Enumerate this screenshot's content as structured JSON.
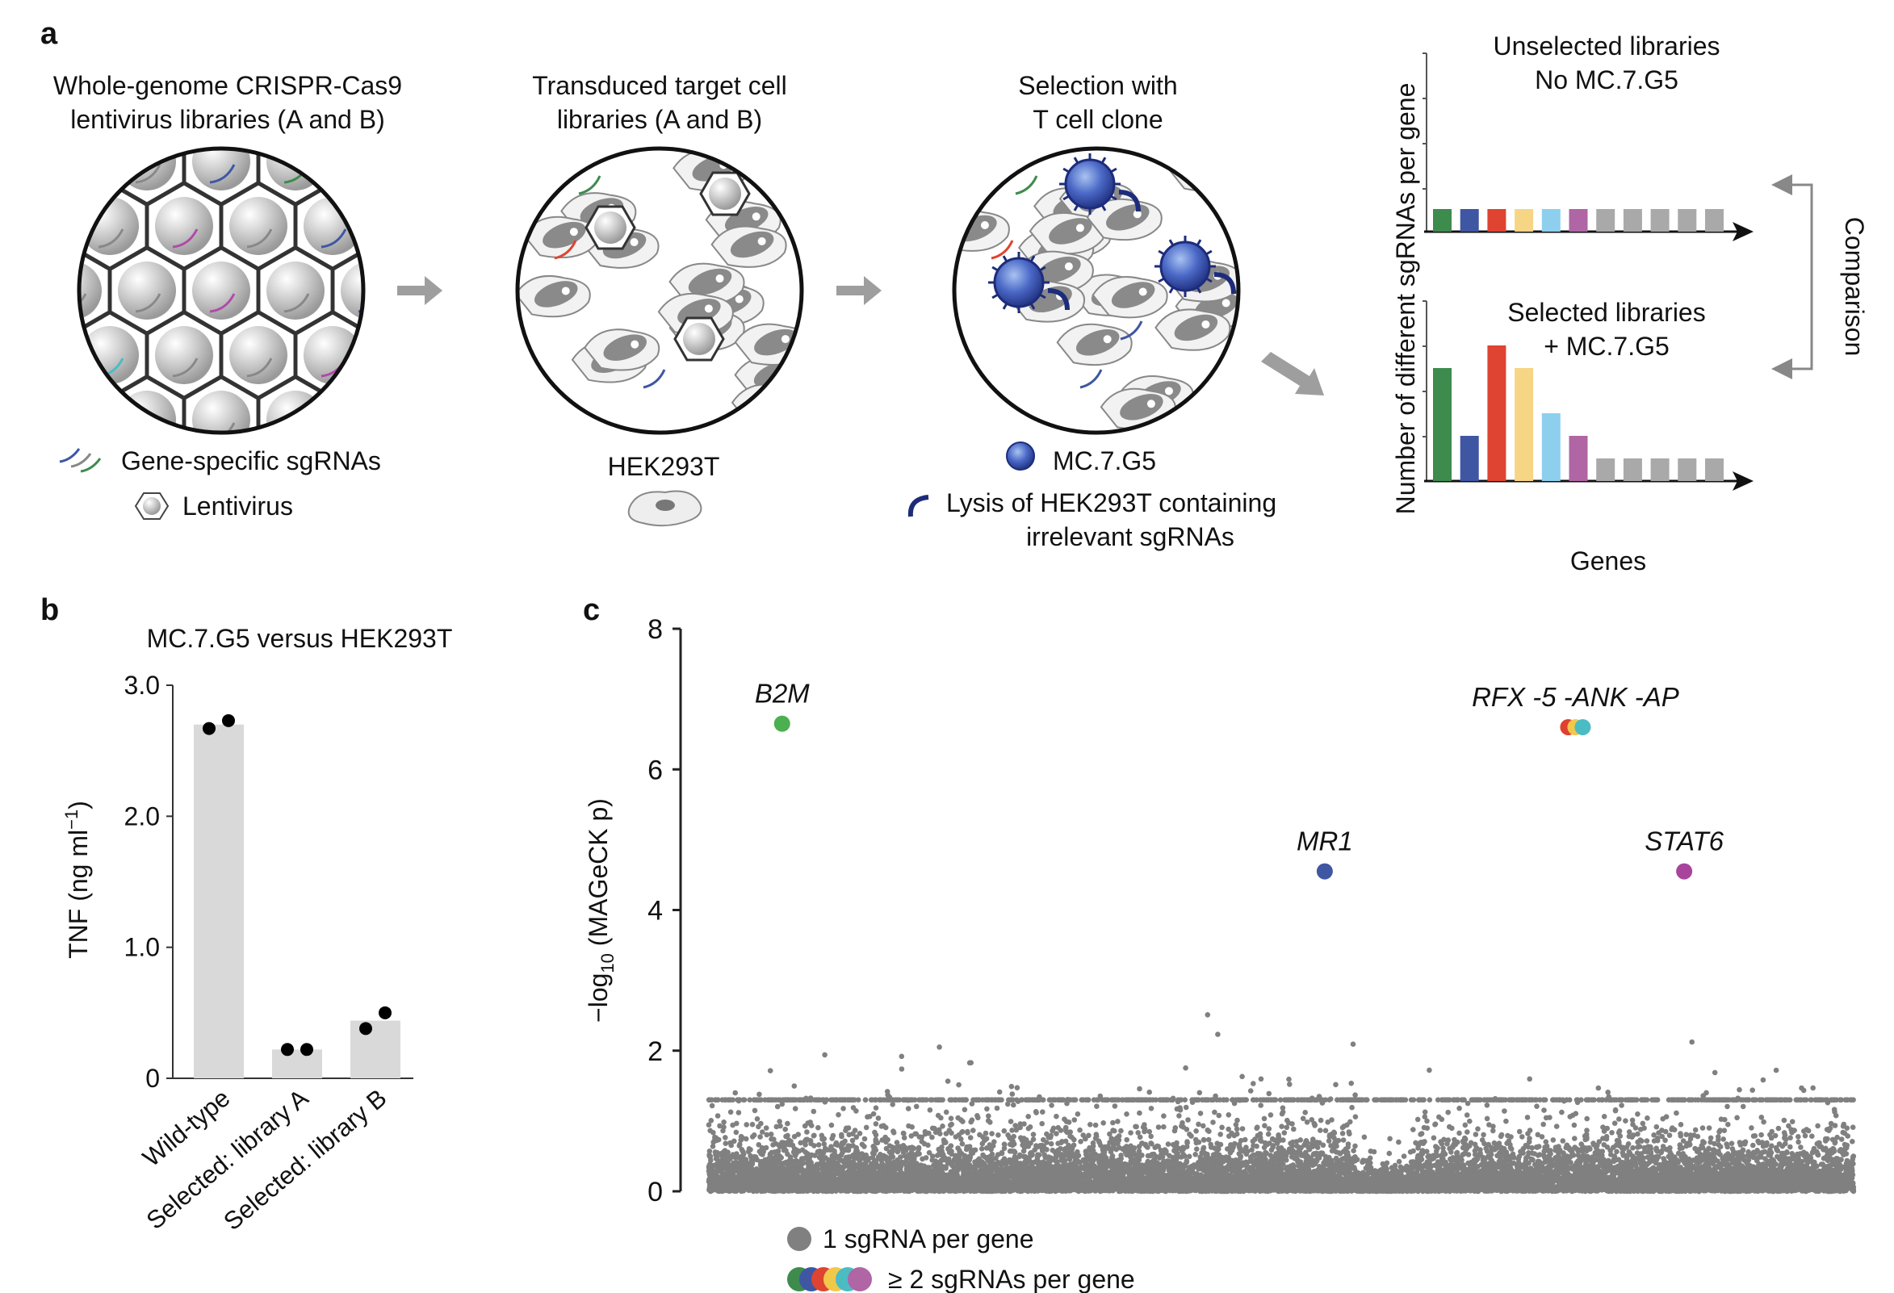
{
  "panel_labels": {
    "a": "a",
    "b": "b",
    "c": "c"
  },
  "panel_a": {
    "step1_title": [
      "Whole-genome CRISPR-Cas9",
      "lentivirus libraries (A and B)"
    ],
    "step2_title": [
      "Transduced target cell",
      "libraries (A and B)"
    ],
    "step3_title": [
      "Selection with",
      "T cell clone"
    ],
    "legend_sgrna": "Gene-specific sgRNAs",
    "legend_lentivirus": "Lentivirus",
    "cell_line": "HEK293T",
    "tcell_label": "MC.7.G5",
    "lysis_label": [
      "Lysis of HEK293T containing",
      "irrelevant sgRNAs"
    ],
    "schematic": {
      "ylabel": "Number of different sgRNAs per gene",
      "xlabel": "Genes",
      "top_title": [
        "Unselected libraries",
        "No MC.7.G5"
      ],
      "bottom_title": [
        "Selected libraries",
        "+ MC.7.G5"
      ],
      "comparison": "Comparison",
      "colors": [
        "#3e8b4e",
        "#3f56a3",
        "#de4431",
        "#f6d585",
        "#8ecfee",
        "#b065a4",
        "#a9a9a9",
        "#a9a9a9",
        "#a9a9a9",
        "#a9a9a9",
        "#a9a9a9"
      ],
      "unselected_values": [
        1,
        1,
        1,
        1,
        1,
        1,
        1,
        1,
        1,
        1,
        1
      ],
      "selected_values": [
        5,
        2,
        6,
        5,
        3,
        2,
        1,
        1,
        1,
        1,
        1
      ]
    }
  },
  "chart_data": [
    {
      "type": "bar",
      "title": "MC.7.G5 versus HEK293T",
      "ylabel": "TNF (ng ml⁻¹)",
      "ylabel_parts": {
        "main": "TNF (ng ml",
        "sup": "−1",
        "close": ")"
      },
      "categories": [
        "Wild-type",
        "Selected: library A",
        "Selected: library B"
      ],
      "values": [
        2.7,
        0.22,
        0.44
      ],
      "replicates": [
        [
          2.67,
          2.73
        ],
        [
          0.22,
          0.22
        ],
        [
          0.38,
          0.5
        ]
      ],
      "ylim": [
        0,
        3.0
      ],
      "yticks": [
        "0",
        "1.0",
        "2.0",
        "3.0"
      ],
      "bar_color": "#d9d9d9"
    },
    {
      "type": "scatter",
      "ylabel": "−log10 (MAGeCK p)",
      "ylabel_parts": {
        "pre": "−log",
        "sub": "10",
        "post": " (MAGeCK p)"
      },
      "ylim": [
        0,
        8
      ],
      "yticks": [
        "0",
        "2",
        "4",
        "6",
        "8"
      ],
      "background_color": "#808080",
      "highlighted": [
        {
          "gene": "B2M",
          "y": 6.65,
          "colors": [
            "#4caf50"
          ]
        },
        {
          "gene": "RFX -5 -ANK -AP",
          "y": 6.6,
          "colors": [
            "#e0402f",
            "#f2c84b",
            "#4bbcc4"
          ]
        },
        {
          "gene": "MR1",
          "y": 4.55,
          "colors": [
            "#3f56a3"
          ]
        },
        {
          "gene": "STAT6",
          "y": 4.55,
          "colors": [
            "#a8449c"
          ]
        }
      ],
      "legend": [
        {
          "label": "1 sgRNA per gene",
          "colors": [
            "#808080"
          ]
        },
        {
          "label": "≥ 2 sgRNAs per gene",
          "colors": [
            "#3e8b4e",
            "#3f56a3",
            "#de4431",
            "#f2c84b",
            "#4bbcc4",
            "#b065a4"
          ]
        }
      ]
    }
  ]
}
